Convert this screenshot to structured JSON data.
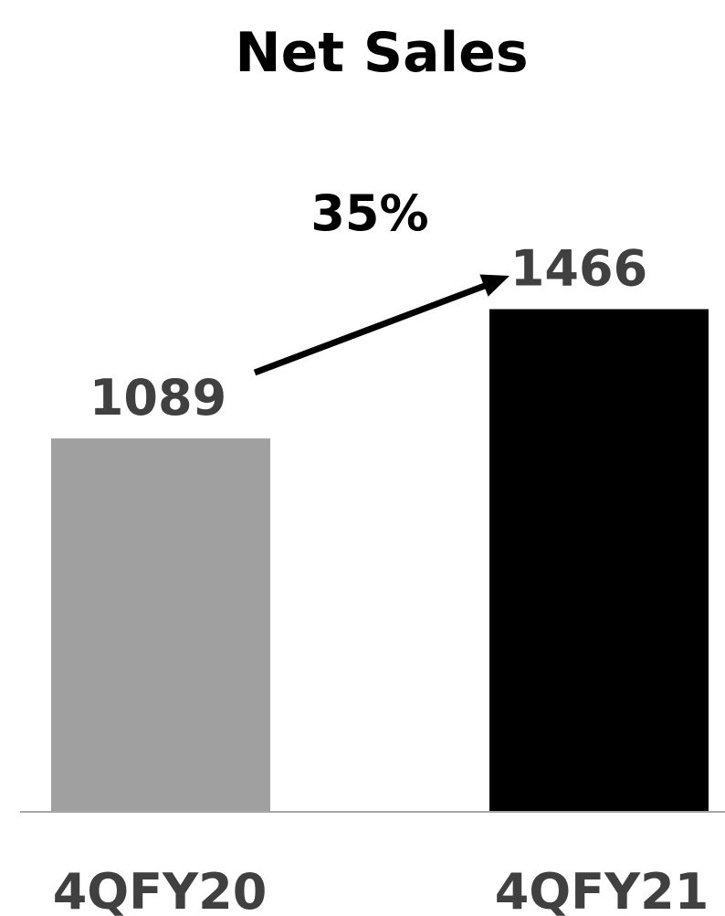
{
  "chart_data": {
    "type": "bar",
    "title": "Net Sales",
    "categories": [
      "4QFY20",
      "4QFY21"
    ],
    "values": [
      1089,
      1466
    ],
    "data_labels": [
      "1089",
      "1466"
    ],
    "bar_colors": [
      "#a0a0a0",
      "#000000"
    ],
    "annotation": {
      "text": "35%",
      "type": "growth-arrow",
      "from": "4QFY20",
      "to": "4QFY21"
    },
    "xlabel": "",
    "ylabel": "",
    "grid": false,
    "legend": "none"
  },
  "colors": {
    "axis_line": "#a6a6a6",
    "label_text": "#404040",
    "title_text": "#000000",
    "arrow": "#000000"
  }
}
